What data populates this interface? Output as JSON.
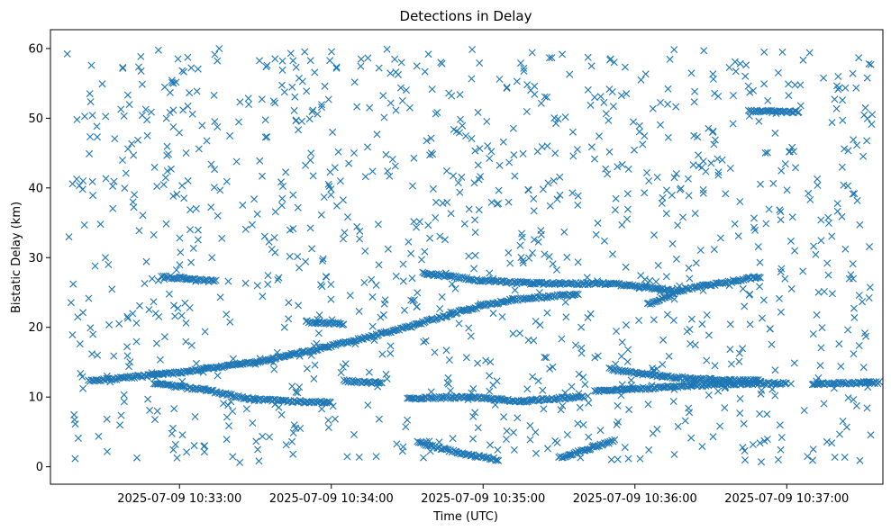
{
  "chart_data": {
    "type": "scatter",
    "title": "Detections in Delay",
    "xlabel": "Time (UTC)",
    "ylabel": "Bistatic Delay (km)",
    "marker": "x",
    "color": "#1f77b4",
    "grid": false,
    "legend": "none",
    "xlim": [
      "2025-07-09 10:32:09",
      "2025-07-09 10:37:38"
    ],
    "ylim": [
      -2.5,
      62.7
    ],
    "x_ticks": [
      "2025-07-09 10:33:00",
      "2025-07-09 10:34:00",
      "2025-07-09 10:35:00",
      "2025-07-09 10:36:00",
      "2025-07-09 10:37:00"
    ],
    "y_ticks": [
      0,
      10,
      20,
      30,
      40,
      50,
      60
    ],
    "tracks": [
      {
        "points": [
          [
            "2025-07-09 10:32:24",
            12.3
          ],
          [
            "2025-07-09 10:33:00",
            13.5
          ],
          [
            "2025-07-09 10:33:30",
            15.0
          ],
          [
            "2025-07-09 10:34:00",
            17.3
          ],
          [
            "2025-07-09 10:34:30",
            20.0
          ],
          [
            "2025-07-09 10:34:53",
            22.5
          ],
          [
            "2025-07-09 10:35:10",
            23.9
          ],
          [
            "2025-07-09 10:35:38",
            24.8
          ]
        ]
      },
      {
        "points": [
          [
            "2025-07-09 10:32:53",
            27.3
          ],
          [
            "2025-07-09 10:33:15",
            26.6
          ]
        ]
      },
      {
        "points": [
          [
            "2025-07-09 10:34:36",
            27.8
          ],
          [
            "2025-07-09 10:35:00",
            26.7
          ],
          [
            "2025-07-09 10:35:20",
            26.3
          ],
          [
            "2025-07-09 10:35:50",
            26.3
          ],
          [
            "2025-07-09 10:36:15",
            25.3
          ]
        ]
      },
      {
        "points": [
          [
            "2025-07-09 10:33:50",
            20.8
          ],
          [
            "2025-07-09 10:34:05",
            20.5
          ]
        ]
      },
      {
        "points": [
          [
            "2025-07-09 10:32:50",
            12.0
          ],
          [
            "2025-07-09 10:33:10",
            11.0
          ],
          [
            "2025-07-09 10:33:30",
            9.6
          ],
          [
            "2025-07-09 10:34:00",
            9.2
          ]
        ]
      },
      {
        "points": [
          [
            "2025-07-09 10:34:05",
            12.3
          ],
          [
            "2025-07-09 10:34:20",
            12.0
          ]
        ]
      },
      {
        "points": [
          [
            "2025-07-09 10:34:30",
            9.8
          ],
          [
            "2025-07-09 10:34:55",
            10.0
          ],
          [
            "2025-07-09 10:35:15",
            9.4
          ],
          [
            "2025-07-09 10:35:40",
            10.1
          ]
        ]
      },
      {
        "points": [
          [
            "2025-07-09 10:34:34",
            3.5
          ],
          [
            "2025-07-09 10:34:50",
            2.0
          ],
          [
            "2025-07-09 10:35:06",
            1.0
          ]
        ]
      },
      {
        "points": [
          [
            "2025-07-09 10:35:30",
            1.3
          ],
          [
            "2025-07-09 10:35:42",
            2.6
          ],
          [
            "2025-07-09 10:35:52",
            3.8
          ]
        ]
      },
      {
        "points": [
          [
            "2025-07-09 10:35:44",
            10.8
          ],
          [
            "2025-07-09 10:36:30",
            11.8
          ],
          [
            "2025-07-09 10:37:00",
            12.0
          ]
        ]
      },
      {
        "points": [
          [
            "2025-07-09 10:35:50",
            14.0
          ],
          [
            "2025-07-09 10:36:10",
            13.0
          ],
          [
            "2025-07-09 10:36:30",
            12.5
          ],
          [
            "2025-07-09 10:36:50",
            12.3
          ]
        ]
      },
      {
        "points": [
          [
            "2025-07-09 10:37:10",
            11.9
          ],
          [
            "2025-07-09 10:37:38",
            12.1
          ]
        ]
      },
      {
        "points": [
          [
            "2025-07-09 10:36:05",
            23.3
          ],
          [
            "2025-07-09 10:36:20",
            25.5
          ],
          [
            "2025-07-09 10:36:50",
            27.3
          ]
        ]
      },
      {
        "points": [
          [
            "2025-07-09 10:36:45",
            51.0
          ],
          [
            "2025-07-09 10:37:05",
            50.9
          ]
        ]
      }
    ],
    "scatter_noise": {
      "count": 1150,
      "x_range": [
        "2025-07-09 10:32:09",
        "2025-07-09 10:37:38"
      ],
      "y_range": [
        0.5,
        60.0
      ]
    }
  }
}
